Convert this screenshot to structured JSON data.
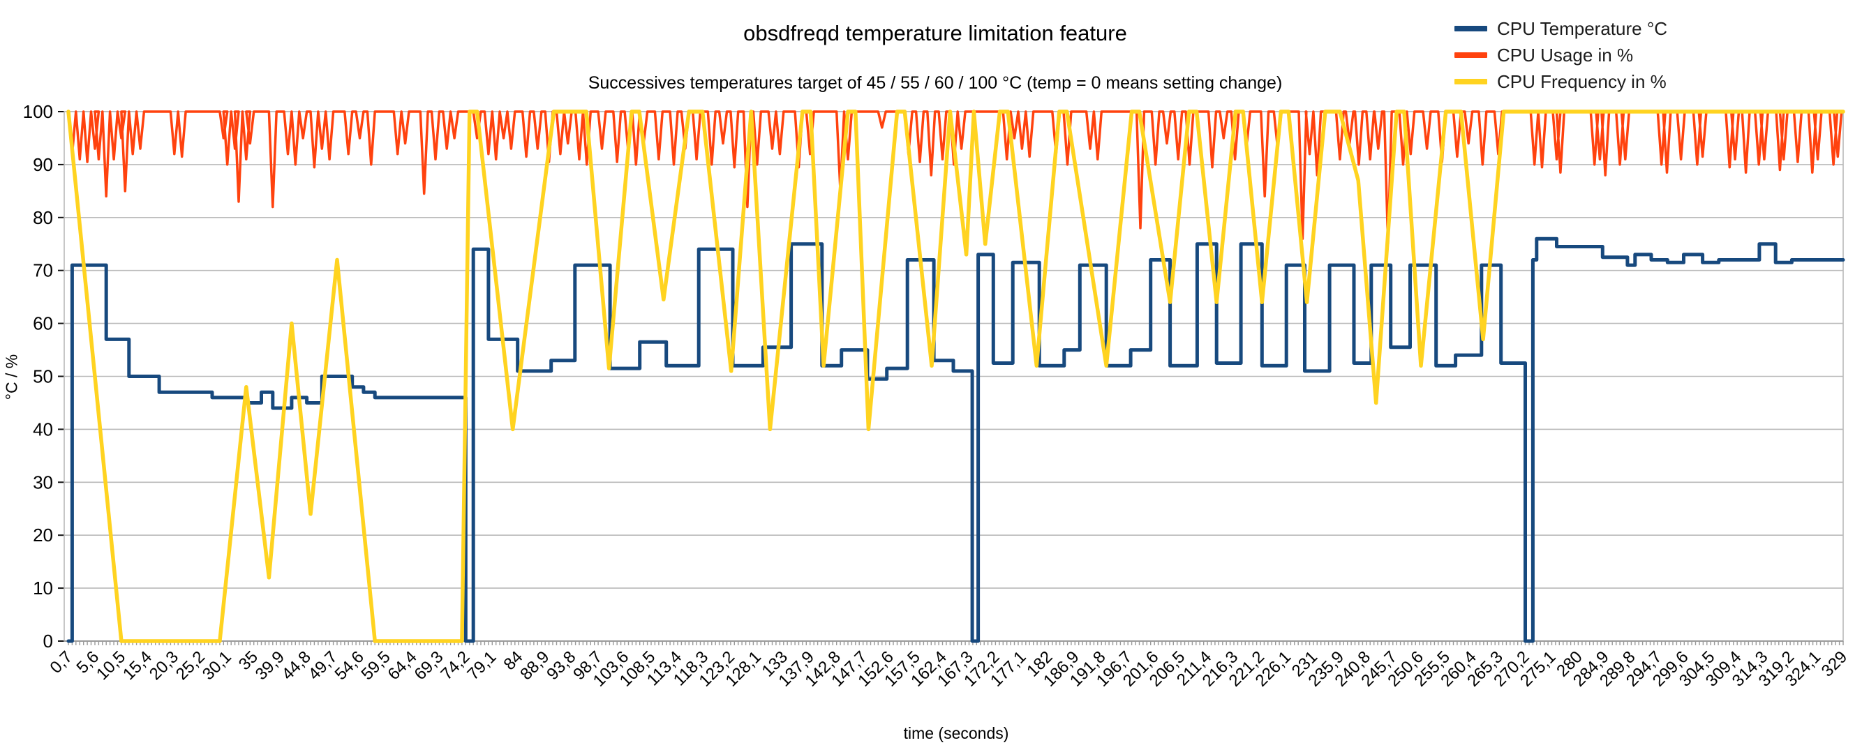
{
  "chart_data": {
    "type": "line",
    "title": "obsdfreqd temperature limitation feature",
    "subtitle": "Successives temperatures target of 45 / 55 / 60 / 100 °C (temp = 0 means setting change)",
    "xlabel": "time (seconds)",
    "ylabel": "°C / %",
    "ylim": [
      0,
      100
    ],
    "y_ticks": [
      0,
      10,
      20,
      30,
      40,
      50,
      60,
      70,
      80,
      90,
      100
    ],
    "x_range": [
      0.7,
      329
    ],
    "sample_interval_s": 0.7,
    "x_label_step_s": 4.9,
    "grid": "horizontal",
    "legend_position": "top-right",
    "colors": {
      "temperature": "#17497E",
      "usage": "#FF420E",
      "frequency": "#FFD320",
      "gridline": "#b9b9b9",
      "axis": "#9a9a9a",
      "text": "#000000"
    },
    "x_tick_labels": [
      "0,7",
      "5,6",
      "10,5",
      "15,4",
      "20,3",
      "25,2",
      "30,1",
      "35",
      "39,9",
      "44,8",
      "49,7",
      "54,6",
      "59,5",
      "64,4",
      "69,3",
      "74,2",
      "79,1",
      "84",
      "88,9",
      "93,8",
      "98,7",
      "103,6",
      "108,5",
      "113,4",
      "118,3",
      "123,2",
      "128,1",
      "133",
      "137,9",
      "142,8",
      "147,7",
      "152,6",
      "157,5",
      "162,4",
      "167,3",
      "172,2",
      "177,1",
      "182",
      "186,9",
      "191,8",
      "196,7",
      "201,6",
      "206,5",
      "211,4",
      "216,3",
      "221,2",
      "226,1",
      "231",
      "235,9",
      "240,8",
      "245,7",
      "250,6",
      "255,5",
      "260,4",
      "265,3",
      "270,2",
      "275,1",
      "280",
      "284,9",
      "289,8",
      "294,7",
      "299,6",
      "304,5",
      "309,4",
      "314,3",
      "319,2",
      "324,1",
      "329"
    ],
    "series": [
      {
        "name": "CPU Temperature °C",
        "color": "#17497E",
        "mode": "step",
        "stroke_width": 5,
        "points": [
          [
            0.7,
            0
          ],
          [
            1.4,
            71
          ],
          [
            7.7,
            57
          ],
          [
            11.9,
            50
          ],
          [
            17.5,
            47
          ],
          [
            27.3,
            46
          ],
          [
            33.6,
            45
          ],
          [
            36.4,
            47
          ],
          [
            38.5,
            44
          ],
          [
            42,
            46
          ],
          [
            44.8,
            45
          ],
          [
            47.6,
            50
          ],
          [
            53.2,
            48
          ],
          [
            55.3,
            47
          ],
          [
            57.4,
            46
          ],
          [
            74.2,
            0
          ],
          [
            75.6,
            74
          ],
          [
            78.4,
            57
          ],
          [
            83.8,
            51
          ],
          [
            90,
            53
          ],
          [
            94.4,
            71
          ],
          [
            100.9,
            51.5
          ],
          [
            106.4,
            56.5
          ],
          [
            111.3,
            52
          ],
          [
            117.3,
            74
          ],
          [
            123.6,
            52
          ],
          [
            129.2,
            55.5
          ],
          [
            134.4,
            75
          ],
          [
            140.1,
            52
          ],
          [
            143.7,
            55
          ],
          [
            148.5,
            49.5
          ],
          [
            152.1,
            51.5
          ],
          [
            155.9,
            72
          ],
          [
            160.8,
            53
          ],
          [
            164.4,
            51
          ],
          [
            167.9,
            0
          ],
          [
            169,
            73
          ],
          [
            171.8,
            52.5
          ],
          [
            175.4,
            71.5
          ],
          [
            180.3,
            52
          ],
          [
            184.9,
            55
          ],
          [
            187.8,
            71
          ],
          [
            192.7,
            52
          ],
          [
            197.2,
            55
          ],
          [
            200.9,
            72
          ],
          [
            204.5,
            52
          ],
          [
            209.5,
            75
          ],
          [
            213.1,
            52.5
          ],
          [
            217.6,
            75
          ],
          [
            221.5,
            52
          ],
          [
            226,
            71
          ],
          [
            229.4,
            51
          ],
          [
            234,
            71
          ],
          [
            238.5,
            52.5
          ],
          [
            241.7,
            71
          ],
          [
            245.3,
            55.5
          ],
          [
            248.9,
            71
          ],
          [
            253.7,
            52
          ],
          [
            257.3,
            54
          ],
          [
            262.1,
            71
          ],
          [
            265.7,
            52.5
          ],
          [
            270.2,
            0
          ],
          [
            271.6,
            72
          ],
          [
            272.3,
            76
          ],
          [
            276,
            74.5
          ],
          [
            284.5,
            72.5
          ],
          [
            289.1,
            71
          ],
          [
            290.5,
            73
          ],
          [
            293.5,
            72
          ],
          [
            296.5,
            71.5
          ],
          [
            299.5,
            73
          ],
          [
            303,
            71.5
          ],
          [
            306,
            72
          ],
          [
            313.5,
            75
          ],
          [
            316.5,
            71.5
          ],
          [
            319.5,
            72
          ],
          [
            329,
            72
          ]
        ]
      },
      {
        "name": "CPU Usage in %",
        "color": "#FF420E",
        "mode": "spikes",
        "stroke_width": 3.5,
        "baseline": 100,
        "dips": [
          [
            1.4,
            92
          ],
          [
            2.8,
            91
          ],
          [
            4.2,
            90.5
          ],
          [
            5.6,
            93
          ],
          [
            6.3,
            91
          ],
          [
            7.7,
            84
          ],
          [
            9.1,
            91
          ],
          [
            10.5,
            95
          ],
          [
            11.2,
            85
          ],
          [
            12.6,
            92
          ],
          [
            14,
            93
          ],
          [
            20.3,
            92
          ],
          [
            21.7,
            91.5
          ],
          [
            29.4,
            95
          ],
          [
            30.1,
            90
          ],
          [
            31.5,
            93
          ],
          [
            32.2,
            83
          ],
          [
            33.6,
            91
          ],
          [
            34.3,
            94
          ],
          [
            38.5,
            82
          ],
          [
            41.3,
            92
          ],
          [
            42.7,
            90
          ],
          [
            44.1,
            95
          ],
          [
            46.2,
            89.5
          ],
          [
            47.6,
            93
          ],
          [
            49,
            91
          ],
          [
            52.5,
            92
          ],
          [
            54.6,
            95
          ],
          [
            56.7,
            90
          ],
          [
            61.6,
            92
          ],
          [
            63,
            94
          ],
          [
            66.5,
            84.5
          ],
          [
            68.6,
            91
          ],
          [
            70.7,
            93
          ],
          [
            72.1,
            95
          ],
          [
            76.3,
            95
          ],
          [
            78.4,
            92
          ],
          [
            79.8,
            91
          ],
          [
            81.2,
            95
          ],
          [
            82.6,
            93
          ],
          [
            85.4,
            91.5
          ],
          [
            87.5,
            93
          ],
          [
            89.6,
            90.5
          ],
          [
            91.7,
            92
          ],
          [
            93.1,
            94
          ],
          [
            95.2,
            91
          ],
          [
            96.6,
            90
          ],
          [
            99.4,
            93
          ],
          [
            102.2,
            90.5
          ],
          [
            104.3,
            92
          ],
          [
            105.7,
            90
          ],
          [
            107.1,
            94
          ],
          [
            109.9,
            91
          ],
          [
            112.7,
            90
          ],
          [
            114.8,
            93
          ],
          [
            116.9,
            91
          ],
          [
            119.7,
            90
          ],
          [
            121.8,
            94
          ],
          [
            123.9,
            89.5
          ],
          [
            126.3,
            82
          ],
          [
            128.1,
            90
          ],
          [
            130.9,
            93
          ],
          [
            132.3,
            92
          ],
          [
            135.8,
            89.5
          ],
          [
            137.9,
            92
          ],
          [
            143.5,
            85
          ],
          [
            144.9,
            91
          ],
          [
            151.2,
            97
          ],
          [
            156.1,
            92
          ],
          [
            158.2,
            90.5
          ],
          [
            160.3,
            88
          ],
          [
            162.4,
            91
          ],
          [
            164.5,
            90
          ],
          [
            165.9,
            93
          ],
          [
            174.3,
            91
          ],
          [
            175.7,
            95
          ],
          [
            177.1,
            93
          ],
          [
            178.5,
            91.5
          ],
          [
            183.4,
            92
          ],
          [
            185.5,
            90
          ],
          [
            189.7,
            93
          ],
          [
            191.1,
            91
          ],
          [
            199,
            78
          ],
          [
            201.8,
            90
          ],
          [
            203.9,
            94
          ],
          [
            206,
            91
          ],
          [
            208.1,
            90
          ],
          [
            212.3,
            89.5
          ],
          [
            214.4,
            95
          ],
          [
            216.5,
            91
          ],
          [
            218.6,
            93
          ],
          [
            222,
            84
          ],
          [
            224.4,
            93
          ],
          [
            229,
            76
          ],
          [
            230.3,
            92
          ],
          [
            231.7,
            88
          ],
          [
            235.9,
            91
          ],
          [
            237.7,
            94
          ],
          [
            239.4,
            90
          ],
          [
            241.5,
            91
          ],
          [
            243,
            93
          ],
          [
            244.8,
            75
          ],
          [
            247.6,
            90
          ],
          [
            249,
            92
          ],
          [
            252,
            93
          ],
          [
            254.8,
            90.5
          ],
          [
            257.6,
            91.5
          ],
          [
            259.7,
            94
          ],
          [
            262.3,
            90
          ],
          [
            265.2,
            92
          ],
          [
            271.9,
            90
          ],
          [
            273.3,
            89.5
          ],
          [
            276,
            91
          ],
          [
            276.7,
            88.5
          ],
          [
            283,
            90
          ],
          [
            284,
            91
          ],
          [
            285,
            88
          ],
          [
            287.7,
            90
          ],
          [
            288.7,
            91
          ],
          [
            295.4,
            90
          ],
          [
            296.4,
            88.5
          ],
          [
            299,
            91
          ],
          [
            302,
            90
          ],
          [
            303,
            91.5
          ],
          [
            308,
            89.5
          ],
          [
            309,
            91
          ],
          [
            311,
            88.5
          ],
          [
            313.4,
            90
          ],
          [
            314.4,
            91
          ],
          [
            317.3,
            89
          ],
          [
            318,
            91
          ],
          [
            320.6,
            90.5
          ],
          [
            323.3,
            88.5
          ],
          [
            324.3,
            91
          ],
          [
            327.2,
            90
          ],
          [
            328,
            91.5
          ]
        ]
      },
      {
        "name": "CPU Frequency in %",
        "color": "#FFD320",
        "mode": "linear",
        "stroke_width": 5.5,
        "points": [
          [
            0.7,
            100
          ],
          [
            10.5,
            0
          ],
          [
            28.7,
            0
          ],
          [
            33.6,
            48
          ],
          [
            37.8,
            12
          ],
          [
            42,
            60
          ],
          [
            45.5,
            24
          ],
          [
            50.4,
            72
          ],
          [
            57.4,
            0
          ],
          [
            73.5,
            0
          ],
          [
            74.9,
            100
          ],
          [
            76.3,
            100
          ],
          [
            82.9,
            40
          ],
          [
            90.5,
            100
          ],
          [
            96.5,
            100
          ],
          [
            100.7,
            51.5
          ],
          [
            104.9,
            100
          ],
          [
            106.3,
            100
          ],
          [
            110.8,
            64.5
          ],
          [
            115.5,
            100
          ],
          [
            118,
            100
          ],
          [
            123.3,
            51
          ],
          [
            127,
            100
          ],
          [
            130.5,
            40
          ],
          [
            136.5,
            100
          ],
          [
            138,
            100
          ],
          [
            140.4,
            52
          ],
          [
            144.9,
            100
          ],
          [
            146.3,
            100
          ],
          [
            148.7,
            40
          ],
          [
            154,
            100
          ],
          [
            155.4,
            100
          ],
          [
            160.4,
            52
          ],
          [
            163.8,
            100
          ],
          [
            166.8,
            73
          ],
          [
            168.2,
            100
          ],
          [
            170.3,
            75
          ],
          [
            173,
            100
          ],
          [
            174.5,
            100
          ],
          [
            179.8,
            52
          ],
          [
            184,
            100
          ],
          [
            185.4,
            100
          ],
          [
            192.7,
            52
          ],
          [
            197.4,
            100
          ],
          [
            198.8,
            100
          ],
          [
            204.5,
            64
          ],
          [
            208,
            100
          ],
          [
            209.4,
            100
          ],
          [
            213.1,
            64
          ],
          [
            216.6,
            100
          ],
          [
            218,
            100
          ],
          [
            221.5,
            64
          ],
          [
            225,
            100
          ],
          [
            226.4,
            100
          ],
          [
            229.8,
            64
          ],
          [
            233.2,
            100
          ],
          [
            235.9,
            100
          ],
          [
            239.3,
            87
          ],
          [
            242.6,
            45
          ],
          [
            246.4,
            100
          ],
          [
            247.8,
            100
          ],
          [
            250.9,
            52
          ],
          [
            255.5,
            100
          ],
          [
            258.3,
            100
          ],
          [
            262.4,
            57
          ],
          [
            266.2,
            100
          ],
          [
            329,
            100
          ]
        ]
      }
    ]
  }
}
